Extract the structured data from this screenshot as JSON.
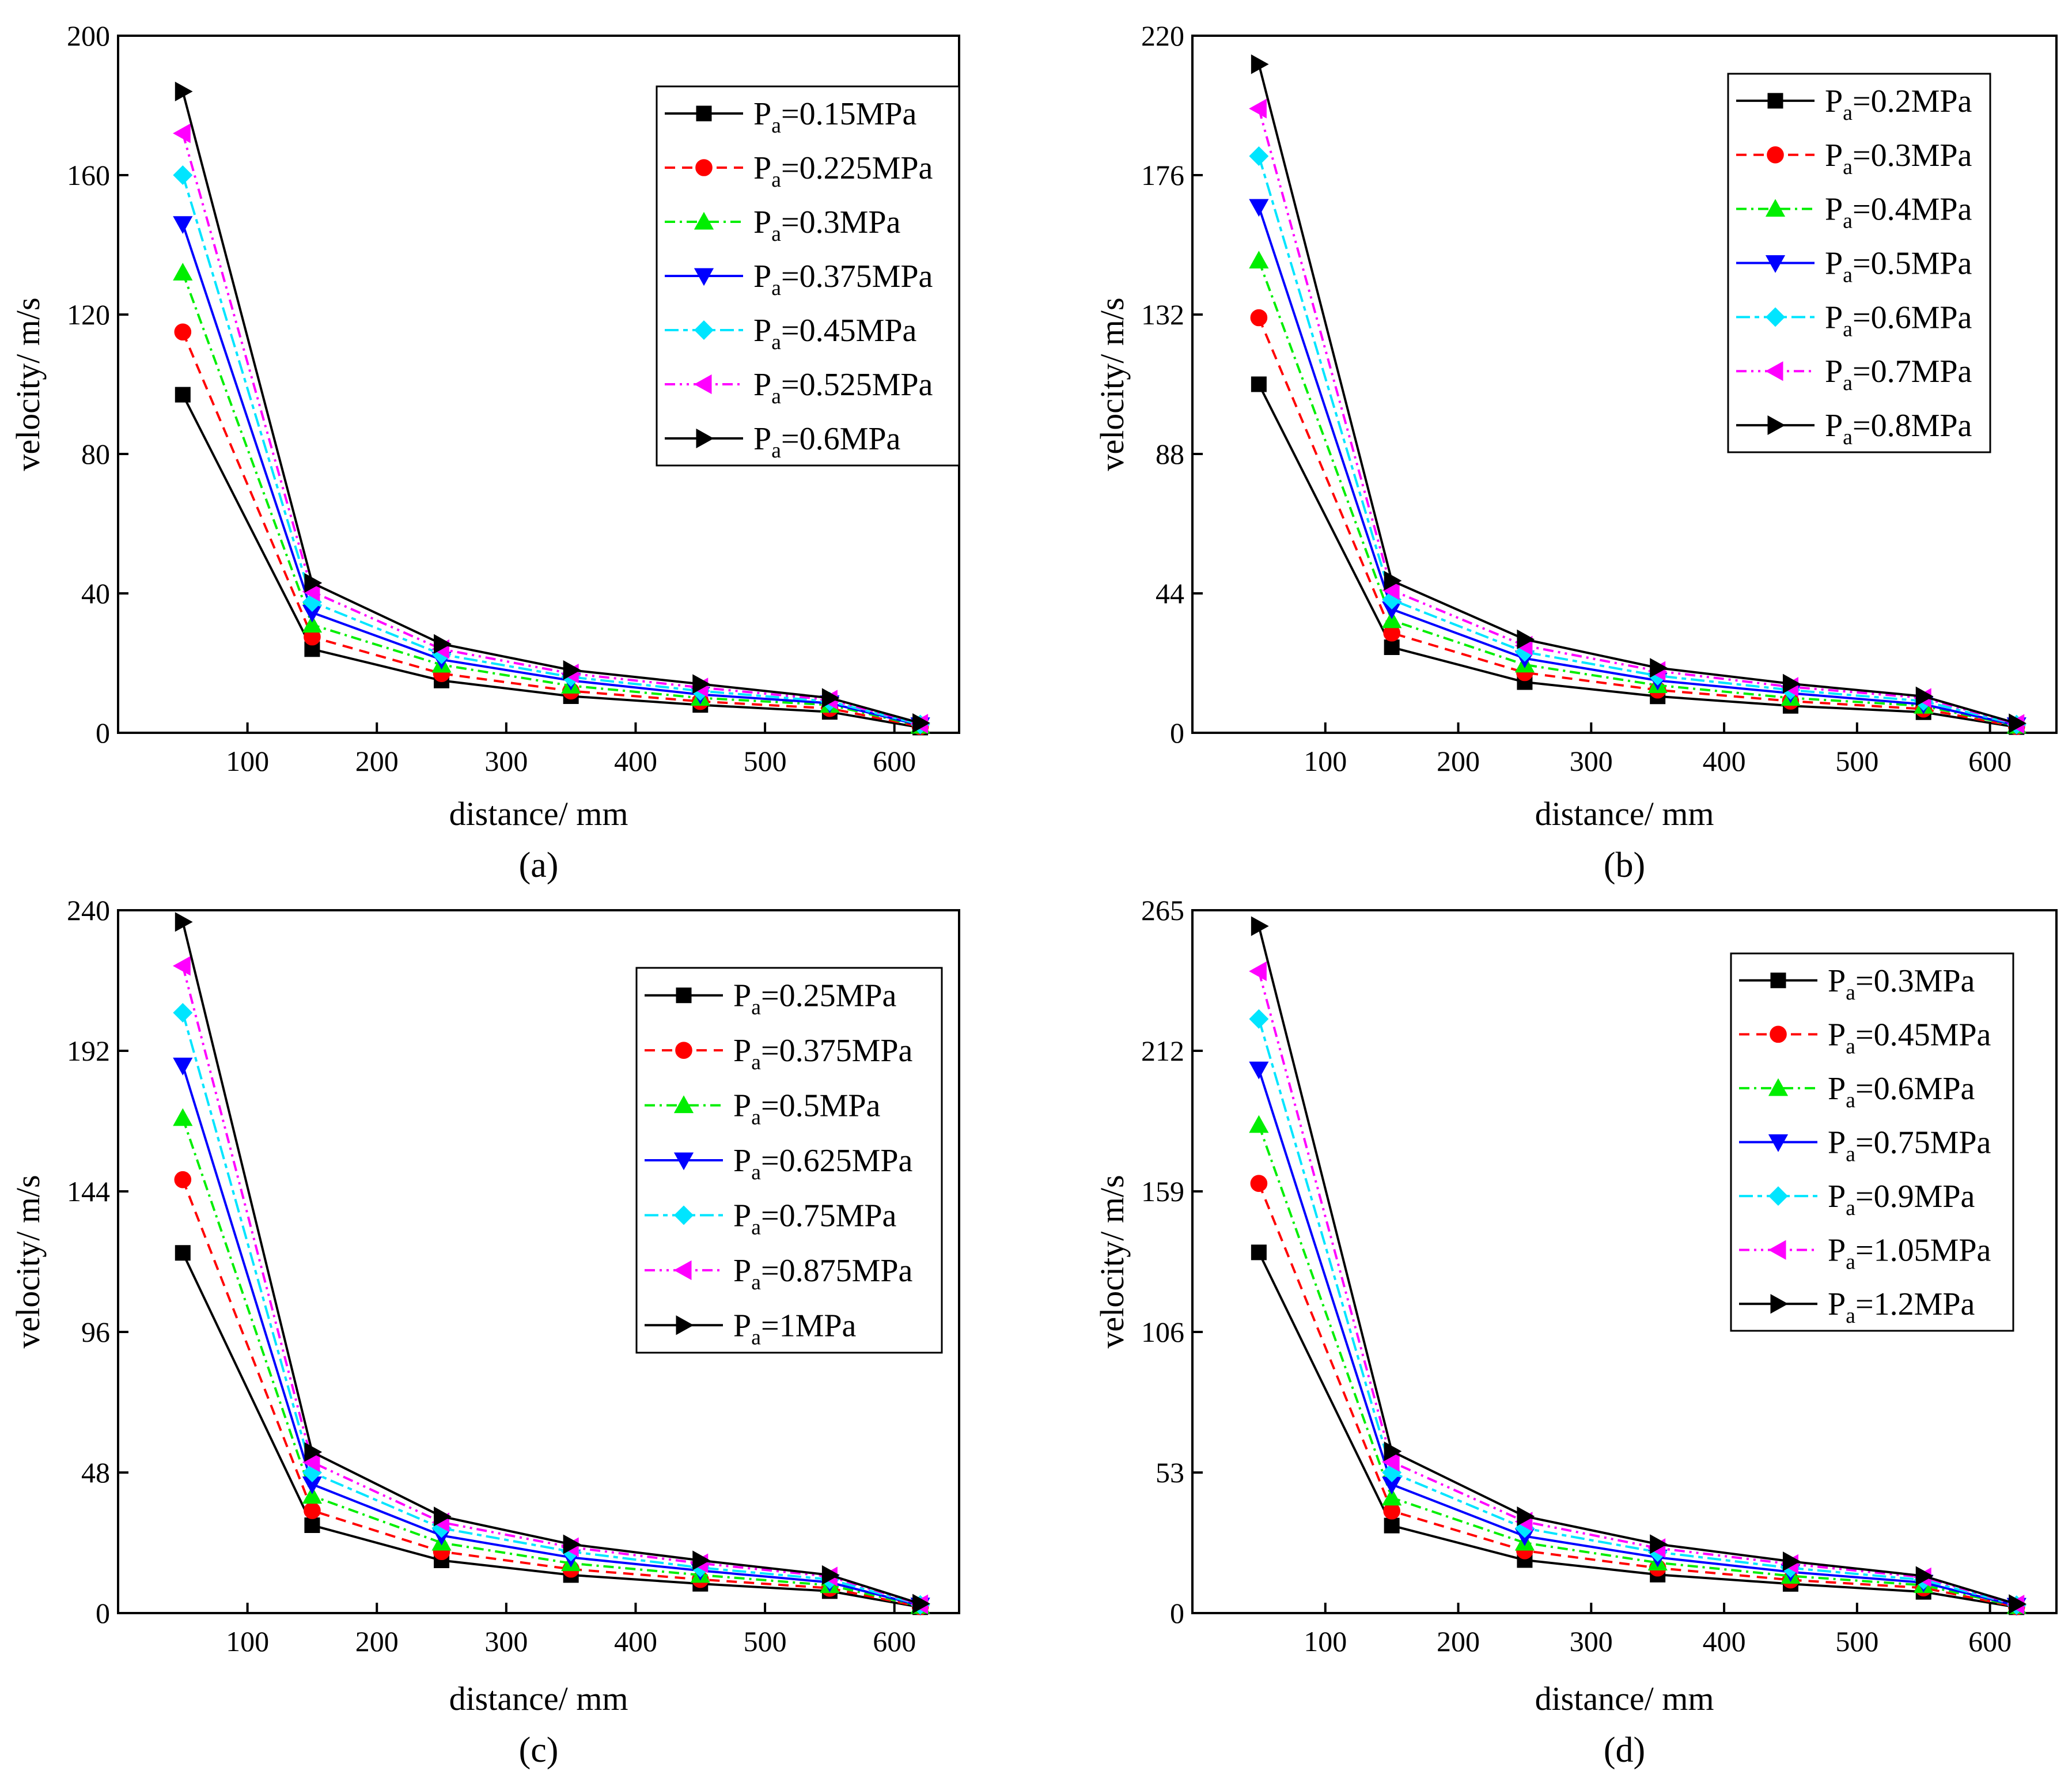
{
  "chart_data": [
    {
      "type": "line",
      "caption": "(a)",
      "xlabel": "distance/ mm",
      "ylabel": "velocity/ m/s",
      "xlim": [
        0,
        650
      ],
      "ylim": [
        0,
        200
      ],
      "xticks": [
        100,
        200,
        300,
        400,
        500,
        600
      ],
      "yticks": [
        0,
        40,
        80,
        120,
        160,
        200
      ],
      "legend_position": "top-right",
      "x": [
        50,
        150,
        250,
        350,
        450,
        550,
        620
      ],
      "series": [
        {
          "legend": {
            "prefix": "P",
            "sub": "a",
            "suffix": "=0.15MPa"
          },
          "color": "#000000",
          "dash": "",
          "marker": "square",
          "values": [
            97,
            24,
            15,
            10.5,
            8,
            6,
            1.5
          ]
        },
        {
          "legend": {
            "prefix": "P",
            "sub": "a",
            "suffix": "=0.225MPa"
          },
          "color": "#ff0000",
          "dash": "18,12",
          "marker": "circle",
          "values": [
            115,
            27.5,
            17,
            12,
            9,
            7,
            1.8
          ]
        },
        {
          "legend": {
            "prefix": "P",
            "sub": "a",
            "suffix": "=0.3MPa"
          },
          "color": "#00ee00",
          "dash": "18,8,4,8",
          "marker": "triangle-up",
          "values": [
            132,
            31,
            19.5,
            13.5,
            10,
            8,
            2
          ]
        },
        {
          "legend": {
            "prefix": "P",
            "sub": "a",
            "suffix": "=0.375MPa"
          },
          "color": "#0000ff",
          "dash": "",
          "marker": "triangle-down",
          "values": [
            146,
            34.5,
            21,
            15,
            11,
            8.5,
            2.2
          ]
        },
        {
          "legend": {
            "prefix": "P",
            "sub": "a",
            "suffix": "=0.45MPa"
          },
          "color": "#00e5ff",
          "dash": "24,8,8,8",
          "marker": "diamond",
          "values": [
            160,
            37.5,
            22.5,
            16,
            12,
            9,
            2.4
          ]
        },
        {
          "legend": {
            "prefix": "P",
            "sub": "a",
            "suffix": "=0.525MPa"
          },
          "color": "#ff00ff",
          "dash": "18,8,4,8,4,8",
          "marker": "triangle-left",
          "values": [
            172,
            40.5,
            24,
            17,
            13,
            9.5,
            2.6
          ]
        },
        {
          "legend": {
            "prefix": "P",
            "sub": "a",
            "suffix": "=0.6MPa"
          },
          "color": "#000000",
          "dash": "",
          "marker": "triangle-right",
          "values": [
            184,
            43,
            25.5,
            18,
            14,
            10,
            2.8
          ]
        }
      ]
    },
    {
      "type": "line",
      "caption": "(b)",
      "xlabel": "distance/ mm",
      "ylabel": "velocity/ m/s",
      "xlim": [
        0,
        650
      ],
      "ylim": [
        0,
        220
      ],
      "xticks": [
        100,
        200,
        300,
        400,
        500,
        600
      ],
      "yticks": [
        0,
        44,
        88,
        132,
        176,
        220
      ],
      "legend_position": "top-right",
      "x": [
        50,
        150,
        250,
        350,
        450,
        550,
        620
      ],
      "series": [
        {
          "legend": {
            "prefix": "P",
            "sub": "a",
            "suffix": "=0.2MPa"
          },
          "color": "#000000",
          "dash": "",
          "marker": "square",
          "values": [
            110,
            27,
            16,
            11.5,
            8.5,
            6.5,
            1.8
          ]
        },
        {
          "legend": {
            "prefix": "P",
            "sub": "a",
            "suffix": "=0.3MPa"
          },
          "color": "#ff0000",
          "dash": "18,12",
          "marker": "circle",
          "values": [
            131,
            31.5,
            19,
            13.5,
            10,
            7.5,
            2
          ]
        },
        {
          "legend": {
            "prefix": "P",
            "sub": "a",
            "suffix": "=0.4MPa"
          },
          "color": "#00ee00",
          "dash": "18,8,4,8",
          "marker": "triangle-up",
          "values": [
            149,
            35.5,
            21.5,
            15,
            11,
            8.5,
            2.2
          ]
        },
        {
          "legend": {
            "prefix": "P",
            "sub": "a",
            "suffix": "=0.5MPa"
          },
          "color": "#0000ff",
          "dash": "",
          "marker": "triangle-down",
          "values": [
            166,
            39,
            23.5,
            16.5,
            12.5,
            9,
            2.4
          ]
        },
        {
          "legend": {
            "prefix": "P",
            "sub": "a",
            "suffix": "=0.6MPa"
          },
          "color": "#00e5ff",
          "dash": "24,8,8,8",
          "marker": "diamond",
          "values": [
            182,
            42,
            25.5,
            18,
            13.5,
            10,
            2.6
          ]
        },
        {
          "legend": {
            "prefix": "P",
            "sub": "a",
            "suffix": "=0.7MPa"
          },
          "color": "#ff00ff",
          "dash": "18,8,4,8,4,8",
          "marker": "triangle-left",
          "values": [
            197,
            45,
            27.5,
            19.5,
            14.5,
            11,
            2.8
          ]
        },
        {
          "legend": {
            "prefix": "P",
            "sub": "a",
            "suffix": "=0.8MPa"
          },
          "color": "#000000",
          "dash": "",
          "marker": "triangle-right",
          "values": [
            211,
            48,
            29.5,
            20.5,
            15.5,
            11.5,
            3
          ]
        }
      ]
    },
    {
      "type": "line",
      "caption": "(c)",
      "xlabel": "distance/ mm",
      "ylabel": "velocity/ m/s",
      "xlim": [
        0,
        650
      ],
      "ylim": [
        0,
        240
      ],
      "xticks": [
        100,
        200,
        300,
        400,
        500,
        600
      ],
      "yticks": [
        0,
        48,
        96,
        144,
        192,
        240
      ],
      "legend_position": "top-right",
      "x": [
        50,
        150,
        250,
        350,
        450,
        550,
        620
      ],
      "series": [
        {
          "legend": {
            "prefix": "P",
            "sub": "a",
            "suffix": "=0.25MPa"
          },
          "color": "#000000",
          "dash": "",
          "marker": "square",
          "values": [
            123,
            30,
            18,
            13,
            10,
            7.5,
            2
          ]
        },
        {
          "legend": {
            "prefix": "P",
            "sub": "a",
            "suffix": "=0.375MPa"
          },
          "color": "#ff0000",
          "dash": "18,12",
          "marker": "circle",
          "values": [
            148,
            35,
            21,
            15,
            11.5,
            8.5,
            2.2
          ]
        },
        {
          "legend": {
            "prefix": "P",
            "sub": "a",
            "suffix": "=0.5MPa"
          },
          "color": "#00ee00",
          "dash": "18,8,4,8",
          "marker": "triangle-up",
          "values": [
            169,
            40,
            24,
            17,
            13,
            9.5,
            2.4
          ]
        },
        {
          "legend": {
            "prefix": "P",
            "sub": "a",
            "suffix": "=0.625MPa"
          },
          "color": "#0000ff",
          "dash": "",
          "marker": "triangle-down",
          "values": [
            187,
            44,
            26.5,
            19,
            14.5,
            10.5,
            2.6
          ]
        },
        {
          "legend": {
            "prefix": "P",
            "sub": "a",
            "suffix": "=0.75MPa"
          },
          "color": "#00e5ff",
          "dash": "24,8,8,8",
          "marker": "diamond",
          "values": [
            205,
            48,
            29,
            21,
            15.5,
            11.5,
            2.8
          ]
        },
        {
          "legend": {
            "prefix": "P",
            "sub": "a",
            "suffix": "=0.875MPa"
          },
          "color": "#ff00ff",
          "dash": "18,8,4,8,4,8",
          "marker": "triangle-left",
          "values": [
            221,
            51.5,
            31,
            22.5,
            17,
            12.5,
            3
          ]
        },
        {
          "legend": {
            "prefix": "P",
            "sub": "a",
            "suffix": "=1MPa"
          },
          "color": "#000000",
          "dash": "",
          "marker": "triangle-right",
          "values": [
            236,
            55,
            33,
            23.5,
            18,
            13,
            3.2
          ]
        }
      ]
    },
    {
      "type": "line",
      "caption": "(d)",
      "xlabel": "distance/ mm",
      "ylabel": "velocity/ m/s",
      "xlim": [
        0,
        650
      ],
      "ylim": [
        0,
        265
      ],
      "xticks": [
        100,
        200,
        300,
        400,
        500,
        600
      ],
      "yticks": [
        0,
        53,
        106,
        159,
        212,
        265
      ],
      "legend_position": "top-right",
      "x": [
        50,
        150,
        250,
        350,
        450,
        550,
        620
      ],
      "series": [
        {
          "legend": {
            "prefix": "P",
            "sub": "a",
            "suffix": "=0.3MPa"
          },
          "color": "#000000",
          "dash": "",
          "marker": "square",
          "values": [
            136,
            33,
            20,
            14.5,
            11,
            8,
            2.2
          ]
        },
        {
          "legend": {
            "prefix": "P",
            "sub": "a",
            "suffix": "=0.45MPa"
          },
          "color": "#ff0000",
          "dash": "18,12",
          "marker": "circle",
          "values": [
            162,
            38.5,
            23.5,
            17,
            12.5,
            9.5,
            2.4
          ]
        },
        {
          "legend": {
            "prefix": "P",
            "sub": "a",
            "suffix": "=0.6MPa"
          },
          "color": "#00ee00",
          "dash": "18,8,4,8",
          "marker": "triangle-up",
          "values": [
            184,
            43.5,
            26.5,
            19,
            14,
            10.5,
            2.6
          ]
        },
        {
          "legend": {
            "prefix": "P",
            "sub": "a",
            "suffix": "=0.75MPa"
          },
          "color": "#0000ff",
          "dash": "",
          "marker": "triangle-down",
          "values": [
            205,
            48.5,
            29,
            21,
            15.5,
            11.5,
            2.8
          ]
        },
        {
          "legend": {
            "prefix": "P",
            "sub": "a",
            "suffix": "=0.9MPa"
          },
          "color": "#00e5ff",
          "dash": "24,8,8,8",
          "marker": "diamond",
          "values": [
            224,
            53,
            32,
            23,
            17,
            12.5,
            3
          ]
        },
        {
          "legend": {
            "prefix": "P",
            "sub": "a",
            "suffix": "=1.05MPa"
          },
          "color": "#ff00ff",
          "dash": "18,8,4,8,4,8",
          "marker": "triangle-left",
          "values": [
            242,
            57,
            34.5,
            24.5,
            18.5,
            13.5,
            3.2
          ]
        },
        {
          "legend": {
            "prefix": "P",
            "sub": "a",
            "suffix": "=1.2MPa"
          },
          "color": "#000000",
          "dash": "",
          "marker": "triangle-right",
          "values": [
            259,
            61,
            36.5,
            26,
            19.5,
            14,
            3.4
          ]
        }
      ]
    }
  ]
}
